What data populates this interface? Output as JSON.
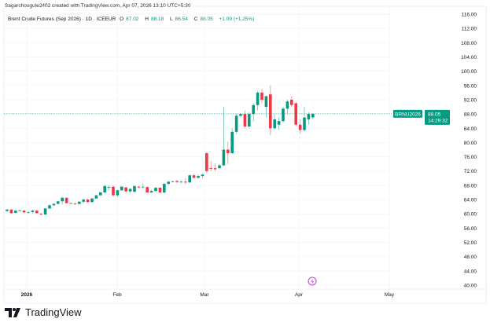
{
  "header": {
    "credit": "Sagarchougule2402 created with TradingView.com, Apr 07, 2026 13:10 UTC+5:30",
    "symbol_title": "Brent Crude Futures (Sep 2026) · 1D · ICEEUR",
    "open_label": "O",
    "open": "87.02",
    "high_label": "H",
    "high": "88.18",
    "low_label": "L",
    "low": "86.54",
    "close_label": "C",
    "close": "88.05",
    "change": "+1.09 (+1.25%)"
  },
  "price_tag": {
    "symbol": "BRNU2026",
    "price": "88.05",
    "countdown": "14:29:32"
  },
  "logo_text": "TradingView",
  "colors": {
    "up": "#089981",
    "down": "#f23645",
    "event": "#c33ee0"
  },
  "chart_data": {
    "type": "candlestick",
    "ylim": [
      40,
      116
    ],
    "y_ticks": [
      "116.00",
      "112.00",
      "108.00",
      "104.00",
      "100.00",
      "96.00",
      "92.00",
      "88.00",
      "84.00",
      "80.00",
      "76.00",
      "72.00",
      "68.00",
      "64.00",
      "60.00",
      "56.00",
      "52.00",
      "48.00",
      "44.00",
      "40.00"
    ],
    "x_ticks": [
      "2026",
      "Feb",
      "Mar",
      "Apr",
      "May"
    ],
    "grid": true,
    "last_price": 88.05,
    "ohlc": [
      [
        60.8,
        61.4,
        60.5,
        61.2
      ],
      [
        61.2,
        61.3,
        60.0,
        60.2
      ],
      [
        60.3,
        61.0,
        60.1,
        60.9
      ],
      [
        60.9,
        61.2,
        60.6,
        61.0
      ],
      [
        60.9,
        61.0,
        60.3,
        60.4
      ],
      [
        60.4,
        60.7,
        60.0,
        60.5
      ],
      [
        60.5,
        61.1,
        60.1,
        60.9
      ],
      [
        60.9,
        61.0,
        60.1,
        60.2
      ],
      [
        60.0,
        60.3,
        59.6,
        59.8
      ],
      [
        59.8,
        61.6,
        59.7,
        61.5
      ],
      [
        61.5,
        62.6,
        61.3,
        62.4
      ],
      [
        62.4,
        63.0,
        62.2,
        62.8
      ],
      [
        62.8,
        63.6,
        62.7,
        63.5
      ],
      [
        63.5,
        64.8,
        62.6,
        64.5
      ],
      [
        64.5,
        64.6,
        62.9,
        63.0
      ],
      [
        63.0,
        63.2,
        62.7,
        62.9
      ],
      [
        62.9,
        63.1,
        62.5,
        62.8
      ],
      [
        62.8,
        63.6,
        62.6,
        63.4
      ],
      [
        63.4,
        64.2,
        63.0,
        64.0
      ],
      [
        64.0,
        64.2,
        63.1,
        63.3
      ],
      [
        63.3,
        64.5,
        63.2,
        64.3
      ],
      [
        64.3,
        65.3,
        64.2,
        65.2
      ],
      [
        65.2,
        66.2,
        65.0,
        66.0
      ],
      [
        66.0,
        68.2,
        65.9,
        67.8
      ],
      [
        67.5,
        68.0,
        66.5,
        67.5
      ],
      [
        67.6,
        67.8,
        64.8,
        65.2
      ],
      [
        65.2,
        66.8,
        64.6,
        66.6
      ],
      [
        66.6,
        67.9,
        66.4,
        67.6
      ],
      [
        67.4,
        67.6,
        66.0,
        66.3
      ],
      [
        66.3,
        67.2,
        65.8,
        67.0
      ],
      [
        66.2,
        67.9,
        65.9,
        67.8
      ],
      [
        67.6,
        67.9,
        67.0,
        67.4
      ],
      [
        67.5,
        68.5,
        67.0,
        67.6
      ],
      [
        67.5,
        67.7,
        65.8,
        66.0
      ],
      [
        66.0,
        66.8,
        65.9,
        66.4
      ],
      [
        66.4,
        67.6,
        66.2,
        67.3
      ],
      [
        67.3,
        67.5,
        65.8,
        66.0
      ],
      [
        66.0,
        68.7,
        65.9,
        68.4
      ],
      [
        68.4,
        69.2,
        68.1,
        69.0
      ],
      [
        69.0,
        69.3,
        68.8,
        69.1
      ],
      [
        69.2,
        69.5,
        68.7,
        68.9
      ],
      [
        68.9,
        69.4,
        68.6,
        69.0
      ],
      [
        69.0,
        70.0,
        68.3,
        68.8
      ],
      [
        68.8,
        71.0,
        68.7,
        70.8
      ],
      [
        70.8,
        71.2,
        69.8,
        70.1
      ],
      [
        70.1,
        71.0,
        69.9,
        70.6
      ],
      [
        70.6,
        71.3,
        70.0,
        71.0
      ],
      [
        77.0,
        77.2,
        71.5,
        72.0
      ],
      [
        72.8,
        74.8,
        72.0,
        72.6
      ],
      [
        72.8,
        74.2,
        72.0,
        72.5
      ],
      [
        72.8,
        74.0,
        72.5,
        73.6
      ],
      [
        73.6,
        90.0,
        73.4,
        78.0
      ],
      [
        78.0,
        80.2,
        74.0,
        77.0
      ],
      [
        77.0,
        84.0,
        76.8,
        83.0
      ],
      [
        83.0,
        88.0,
        82.5,
        87.5
      ],
      [
        87.5,
        88.2,
        87.0,
        88.0
      ],
      [
        88.0,
        89.0,
        84.0,
        84.5
      ],
      [
        84.5,
        88.5,
        84.0,
        88.0
      ],
      [
        88.0,
        91.0,
        86.0,
        90.5
      ],
      [
        90.5,
        94.5,
        89.0,
        94.0
      ],
      [
        94.0,
        95.0,
        91.0,
        92.0
      ],
      [
        90.0,
        93.0,
        87.0,
        93.0
      ],
      [
        93.5,
        96.0,
        82.0,
        84.0
      ],
      [
        84.0,
        88.0,
        83.5,
        86.5
      ],
      [
        85.0,
        87.0,
        83.5,
        86.0
      ],
      [
        86.0,
        90.0,
        85.5,
        89.5
      ],
      [
        89.5,
        92.0,
        88.0,
        91.5
      ],
      [
        92.0,
        93.0,
        90.0,
        90.5
      ],
      [
        91.0,
        91.5,
        84.5,
        85.0
      ],
      [
        85.0,
        86.5,
        82.5,
        83.5
      ],
      [
        83.5,
        90.0,
        83.0,
        87.0
      ],
      [
        86.5,
        88.5,
        85.0,
        88.0
      ],
      [
        87.02,
        88.18,
        86.54,
        88.05
      ]
    ]
  }
}
